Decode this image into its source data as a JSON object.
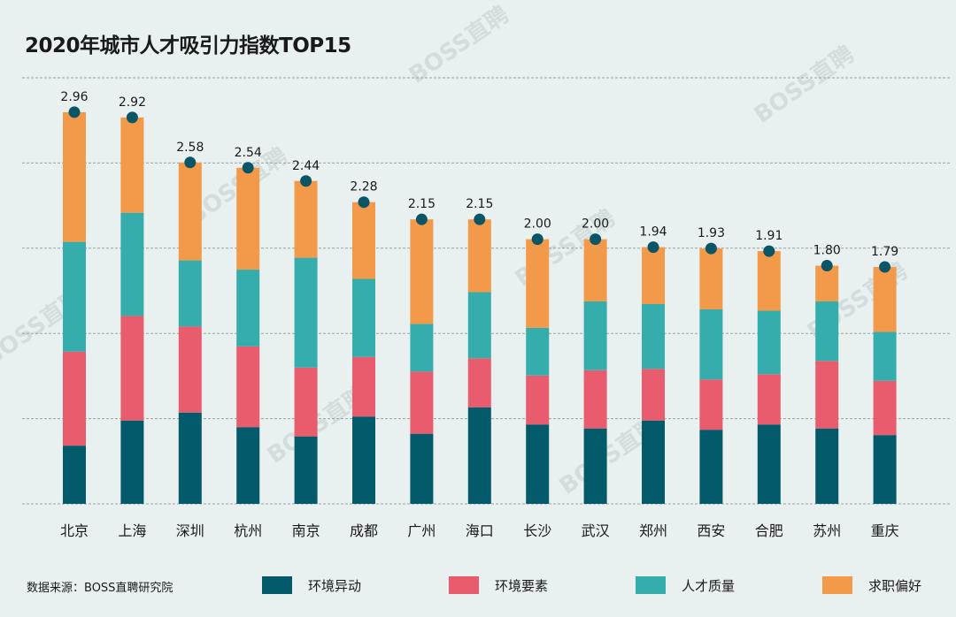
{
  "title": "2020年城市人才吸引力指数TOP15",
  "source": "数据来源：BOSS直聘研究院",
  "watermark": "BOSS直聘",
  "chart_data": {
    "type": "bar",
    "stacked": true,
    "title": "2020年城市人才吸引力指数TOP15",
    "xlabel": "",
    "ylabel": "",
    "ylim": [
      0,
      3.22
    ],
    "grid": true,
    "gridline_count": 6,
    "legend_position": "bottom",
    "categories": [
      "北京",
      "上海",
      "深圳",
      "杭州",
      "南京",
      "成都",
      "广州",
      "海口",
      "长沙",
      "武汉",
      "郑州",
      "西安",
      "合肥",
      "苏州",
      "重庆"
    ],
    "totals": [
      2.96,
      2.92,
      2.58,
      2.54,
      2.44,
      2.28,
      2.15,
      2.15,
      2.0,
      2.0,
      1.94,
      1.93,
      1.91,
      1.8,
      1.79
    ],
    "total_labels": [
      "2.96",
      "2.92",
      "2.58",
      "2.54",
      "2.44",
      "2.28",
      "2.15",
      "2.15",
      "2.00",
      "2.00",
      "1.94",
      "1.93",
      "1.91",
      "1.80",
      "1.79"
    ],
    "series": [
      {
        "name": "环境异动",
        "color": "#035a6b",
        "values": [
          0.44,
          0.63,
          0.69,
          0.58,
          0.51,
          0.66,
          0.53,
          0.73,
          0.6,
          0.57,
          0.63,
          0.56,
          0.6,
          0.57,
          0.52
        ]
      },
      {
        "name": "环境要素",
        "color": "#e95c6d",
        "values": [
          0.71,
          0.79,
          0.65,
          0.61,
          0.52,
          0.45,
          0.47,
          0.37,
          0.37,
          0.44,
          0.39,
          0.38,
          0.38,
          0.51,
          0.41
        ]
      },
      {
        "name": "人才质量",
        "color": "#35adad",
        "values": [
          0.83,
          0.78,
          0.5,
          0.58,
          0.83,
          0.59,
          0.36,
          0.5,
          0.36,
          0.52,
          0.49,
          0.53,
          0.48,
          0.45,
          0.37
        ]
      },
      {
        "name": "求职偏好",
        "color": "#f2994a",
        "values": [
          0.98,
          0.72,
          0.74,
          0.77,
          0.58,
          0.58,
          0.79,
          0.55,
          0.67,
          0.47,
          0.43,
          0.46,
          0.45,
          0.27,
          0.49
        ]
      }
    ],
    "marker_color": "#0a5566"
  }
}
